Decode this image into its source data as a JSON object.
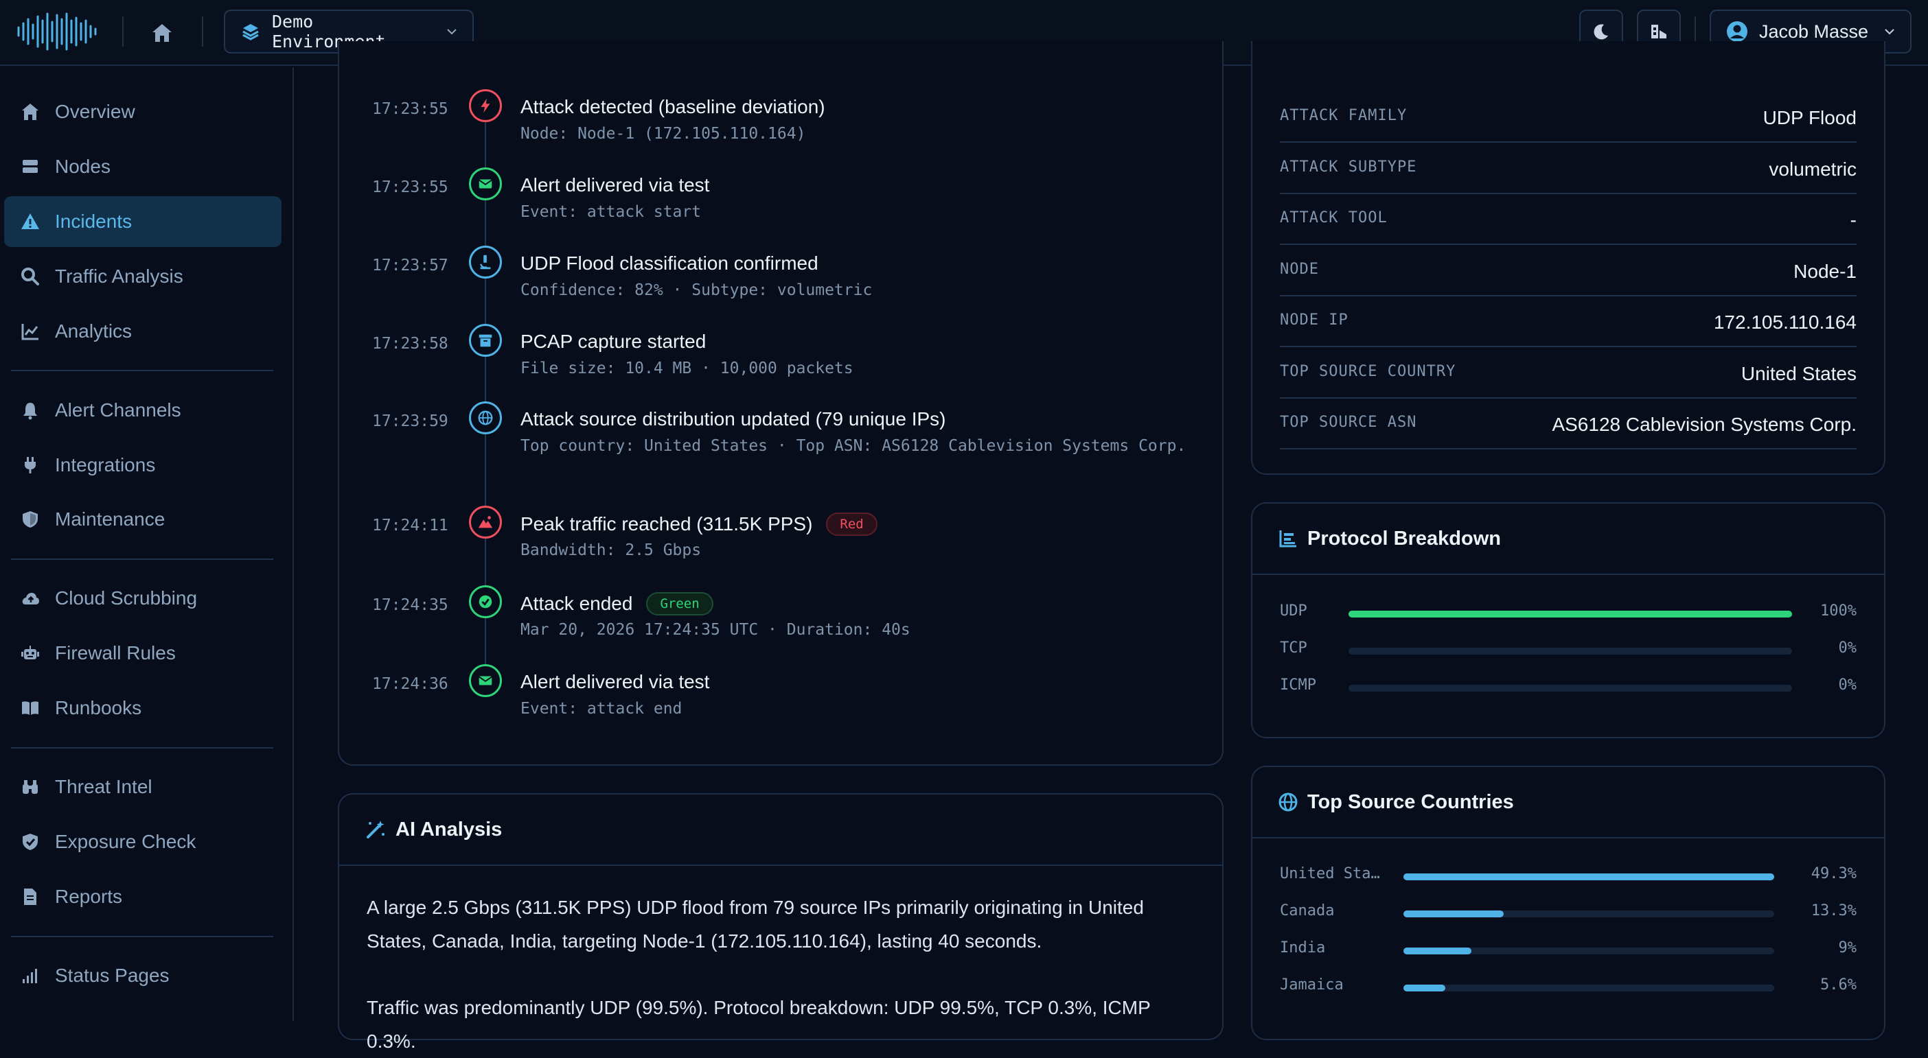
{
  "header": {
    "environment": "Demo Environment",
    "user_name": "Jacob Masse"
  },
  "sidebar": {
    "items": [
      {
        "label": "Overview",
        "icon": "home-icon"
      },
      {
        "label": "Nodes",
        "icon": "server-icon"
      },
      {
        "label": "Incidents",
        "icon": "warning-icon",
        "active": true
      },
      {
        "label": "Traffic Analysis",
        "icon": "search-icon"
      },
      {
        "label": "Analytics",
        "icon": "chart-line-icon"
      },
      {
        "label": "Alert Channels",
        "icon": "bell-icon"
      },
      {
        "label": "Integrations",
        "icon": "plug-icon"
      },
      {
        "label": "Maintenance",
        "icon": "shield-icon"
      },
      {
        "label": "Cloud Scrubbing",
        "icon": "cloud-upload-icon"
      },
      {
        "label": "Firewall Rules",
        "icon": "robot-icon"
      },
      {
        "label": "Runbooks",
        "icon": "book-icon"
      },
      {
        "label": "Threat Intel",
        "icon": "binoculars-icon"
      },
      {
        "label": "Exposure Check",
        "icon": "shield-check-icon"
      },
      {
        "label": "Reports",
        "icon": "document-icon"
      },
      {
        "label": "Status Pages",
        "icon": "signal-icon"
      }
    ]
  },
  "timeline": [
    {
      "time": "17:23:55",
      "title": "Attack detected (baseline deviation)",
      "sub": "Node: Node-1 (172.105.110.164)",
      "color": "#f0505e",
      "icon": "bolt-icon"
    },
    {
      "time": "17:23:55",
      "title": "Alert delivered via test",
      "sub": "Event: attack start",
      "color": "#2ed47a",
      "icon": "envelope-icon"
    },
    {
      "time": "17:23:57",
      "title": "UDP Flood classification confirmed",
      "sub": "Confidence: 82% · Subtype: volumetric",
      "color": "#4fb3e8",
      "icon": "microscope-icon"
    },
    {
      "time": "17:23:58",
      "title": "PCAP capture started",
      "sub": "File size: 10.4 MB · 10,000 packets",
      "color": "#4fb3e8",
      "icon": "archive-icon"
    },
    {
      "time": "17:23:59",
      "title": "Attack source distribution updated (79 unique IPs)",
      "sub": "Top country: United States · Top ASN: AS6128 Cablevision Systems Corp.",
      "color": "#4fb3e8",
      "icon": "globe-icon"
    },
    {
      "time": "17:24:11",
      "title": "Peak traffic reached (311.5K PPS)",
      "sub": "Bandwidth: 2.5 Gbps",
      "color": "#f0505e",
      "icon": "mountain-icon",
      "badge": "Red",
      "badge_kind": "red"
    },
    {
      "time": "17:24:35",
      "title": "Attack ended",
      "sub": "Mar 20, 2026 17:24:35 UTC · Duration: 40s",
      "color": "#2ed47a",
      "icon": "check-circle-icon",
      "badge": "Green",
      "badge_kind": "green"
    },
    {
      "time": "17:24:36",
      "title": "Alert delivered via test",
      "sub": "Event: attack end",
      "color": "#2ed47a",
      "icon": "envelope-icon"
    }
  ],
  "ai_analysis": {
    "title": "AI Analysis",
    "paragraph1": "A large 2.5 Gbps (311.5K PPS) UDP flood from 79 source IPs primarily originating in United States, Canada, India, targeting Node-1 (172.105.110.164), lasting 40 seconds.",
    "paragraph2": "Traffic was predominantly UDP (99.5%). Protocol breakdown: UDP 99.5%, TCP 0.3%, ICMP 0.3%."
  },
  "details": [
    {
      "key": "ATTACK FAMILY",
      "value": "UDP Flood"
    },
    {
      "key": "ATTACK SUBTYPE",
      "value": "volumetric"
    },
    {
      "key": "ATTACK TOOL",
      "value": "-"
    },
    {
      "key": "NODE",
      "value": "Node-1"
    },
    {
      "key": "NODE IP",
      "value": "172.105.110.164"
    },
    {
      "key": "TOP SOURCE COUNTRY",
      "value": "United States"
    },
    {
      "key": "TOP SOURCE ASN",
      "value": "AS6128 Cablevision Systems Corp."
    }
  ],
  "protocol_breakdown": {
    "title": "Protocol Breakdown",
    "rows": [
      {
        "label": "UDP",
        "pct": "100%",
        "value": 100
      },
      {
        "label": "TCP",
        "pct": "0%",
        "value": 0
      },
      {
        "label": "ICMP",
        "pct": "0%",
        "value": 0
      }
    ]
  },
  "top_countries": {
    "title": "Top Source Countries",
    "rows": [
      {
        "label": "United Sta…",
        "pct": "49.3%",
        "value": 49.3
      },
      {
        "label": "Canada",
        "pct": "13.3%",
        "value": 13.3
      },
      {
        "label": "India",
        "pct": "9%",
        "value": 9
      },
      {
        "label": "Jamaica",
        "pct": "5.6%",
        "value": 5.6
      }
    ]
  },
  "colors": {
    "accent": "#4fb3e8",
    "success": "#2ed47a",
    "danger": "#f0505e"
  }
}
